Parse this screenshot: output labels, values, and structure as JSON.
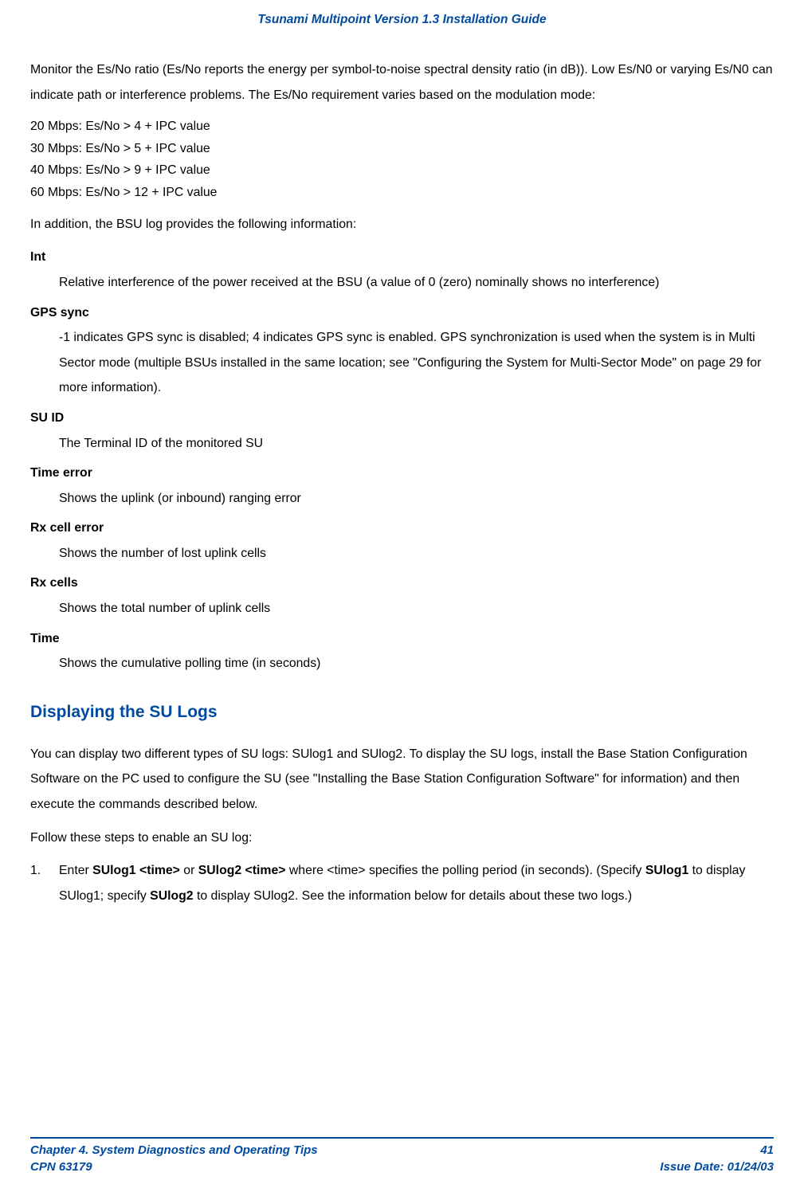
{
  "header": {
    "title": "Tsunami Multipoint Version 1.3 Installation Guide"
  },
  "intro": {
    "p1": "Monitor the Es/No ratio (Es/No reports the energy per symbol-to-noise spectral density ratio (in dB)). Low Es/N0 or varying Es/N0 can indicate path or interference problems. The Es/No requirement varies based on the modulation mode:"
  },
  "specs": {
    "l1": "20 Mbps: Es/No > 4 + IPC value",
    "l2": "30 Mbps: Es/No > 5 + IPC value",
    "l3": "40 Mbps: Es/No > 9 + IPC value",
    "l4": "60 Mbps: Es/No > 12 + IPC value"
  },
  "intro2": {
    "p2": "In addition, the BSU log provides the following information:"
  },
  "defs": {
    "int_t": "Int",
    "int_d": "Relative interference of the power received at the BSU (a value of 0 (zero) nominally shows no interference)",
    "gps_t": "GPS sync",
    "gps_d": "-1 indicates GPS sync is disabled; 4 indicates GPS sync is enabled.  GPS synchronization is used when the system is in Multi Sector mode (multiple BSUs installed in the same location; see \"Configuring the System for Multi-Sector Mode\" on page 29 for more information).",
    "suid_t": "SU ID",
    "suid_d": "The Terminal ID of the monitored SU",
    "timee_t": "Time error",
    "timee_d": "Shows the uplink (or inbound) ranging error",
    "rxce_t": "Rx cell error",
    "rxce_d": "Shows the number of lost uplink cells",
    "rxc_t": "Rx cells",
    "rxc_d": "Shows the total number of uplink cells",
    "time_t": "Time",
    "time_d": "Shows the cumulative polling time (in seconds)"
  },
  "section": {
    "heading": "Displaying the SU Logs"
  },
  "sec": {
    "p1": "You can display two different types of SU logs: SUlog1 and SUlog2. To display the SU logs, install the Base Station Configuration Software on the PC used to configure the SU (see \"Installing the Base Station Configuration Software\" for information) and then execute the commands described below.",
    "p2": "Follow these steps to enable an SU log:"
  },
  "step1": {
    "num": "1.",
    "a": "Enter ",
    "b": "SUlog1 <time>",
    "c": " or ",
    "d": "SUlog2 <time>",
    "e": " where <time> specifies the polling period (in seconds). (Specify ",
    "f": "SUlog1",
    "g": " to display SUlog1; specify ",
    "h": "SUlog2",
    "i": " to display SUlog2. See the information below for details about these two logs.)"
  },
  "footer": {
    "left1": "Chapter 4.  System Diagnostics and Operating Tips",
    "left2": "CPN 63179",
    "right1": "41",
    "right2": "Issue Date:  01/24/03"
  },
  "style": {
    "accent": "#004a9f",
    "body_fontsize": 15.8,
    "header_fontsize": 15.5,
    "heading_fontsize": 21,
    "footer_fontsize": 15
  }
}
